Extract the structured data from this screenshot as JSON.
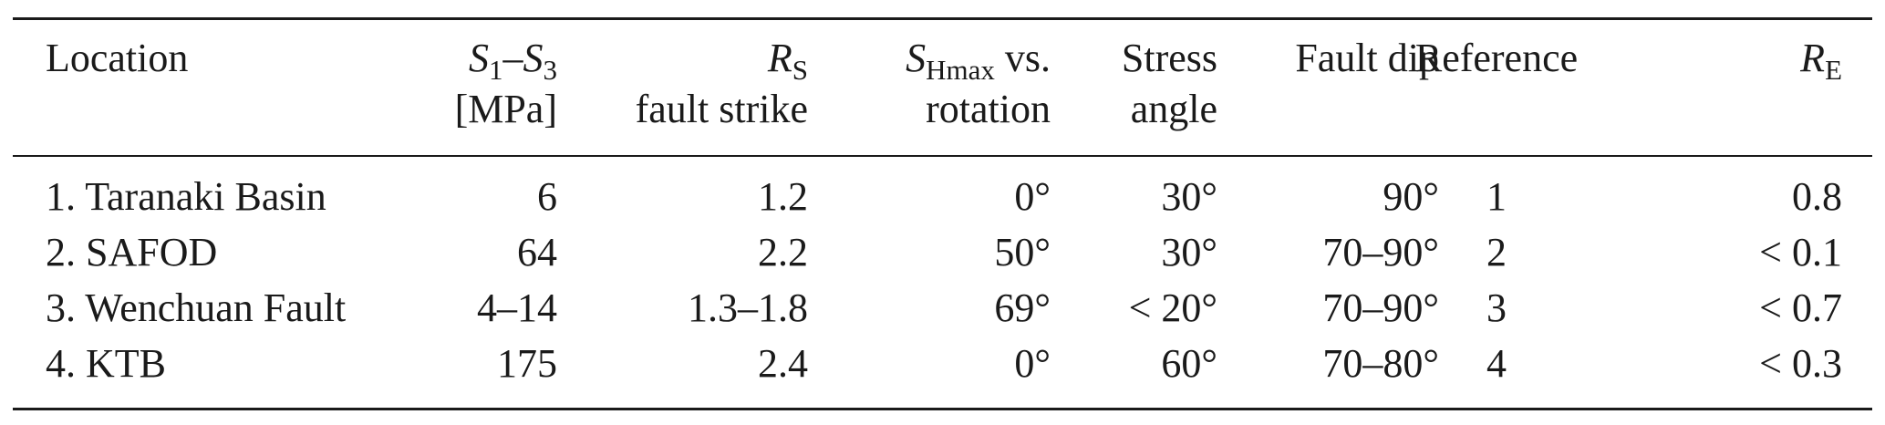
{
  "table": {
    "headers": {
      "location": "Location",
      "s1s3": {
        "s1_symbol": "S",
        "s1_sub": "1",
        "dash": "–",
        "s3_symbol": "S",
        "s3_sub": "3",
        "unit": "[MPa]"
      },
      "rs": {
        "symbol": "R",
        "sub": "S",
        "line2": "fault strike"
      },
      "shmax": {
        "symbol": "S",
        "sub": "Hmax",
        "line1_suffix": " vs.",
        "line2": "rotation"
      },
      "stress": {
        "line1": "Stress",
        "line2": "angle"
      },
      "fault_dip": "Fault dip",
      "reference": "Reference",
      "re": {
        "symbol": "R",
        "sub": "E"
      }
    },
    "rows": [
      {
        "location": "1. Taranaki Basin",
        "s1s3": "6",
        "rs": "1.2",
        "shmax": "0°",
        "stress": "30°",
        "dip": "90°",
        "reference": "1",
        "re": "0.8"
      },
      {
        "location": "2. SAFOD",
        "s1s3": "64",
        "rs": "2.2",
        "shmax": "50°",
        "stress": "30°",
        "dip": "70–90°",
        "reference": "2",
        "re": "< 0.1"
      },
      {
        "location": "3. Wenchuan Fault",
        "s1s3": "4–14",
        "rs": "1.3–1.8",
        "shmax": "69°",
        "stress": "< 20°",
        "dip": "70–90°",
        "reference": "3",
        "re": "< 0.7"
      },
      {
        "location": "4. KTB",
        "s1s3": "175",
        "rs": "2.4",
        "shmax": "0°",
        "stress": "60°",
        "dip": "70–80°",
        "reference": "4",
        "re": "< 0.3"
      }
    ]
  }
}
